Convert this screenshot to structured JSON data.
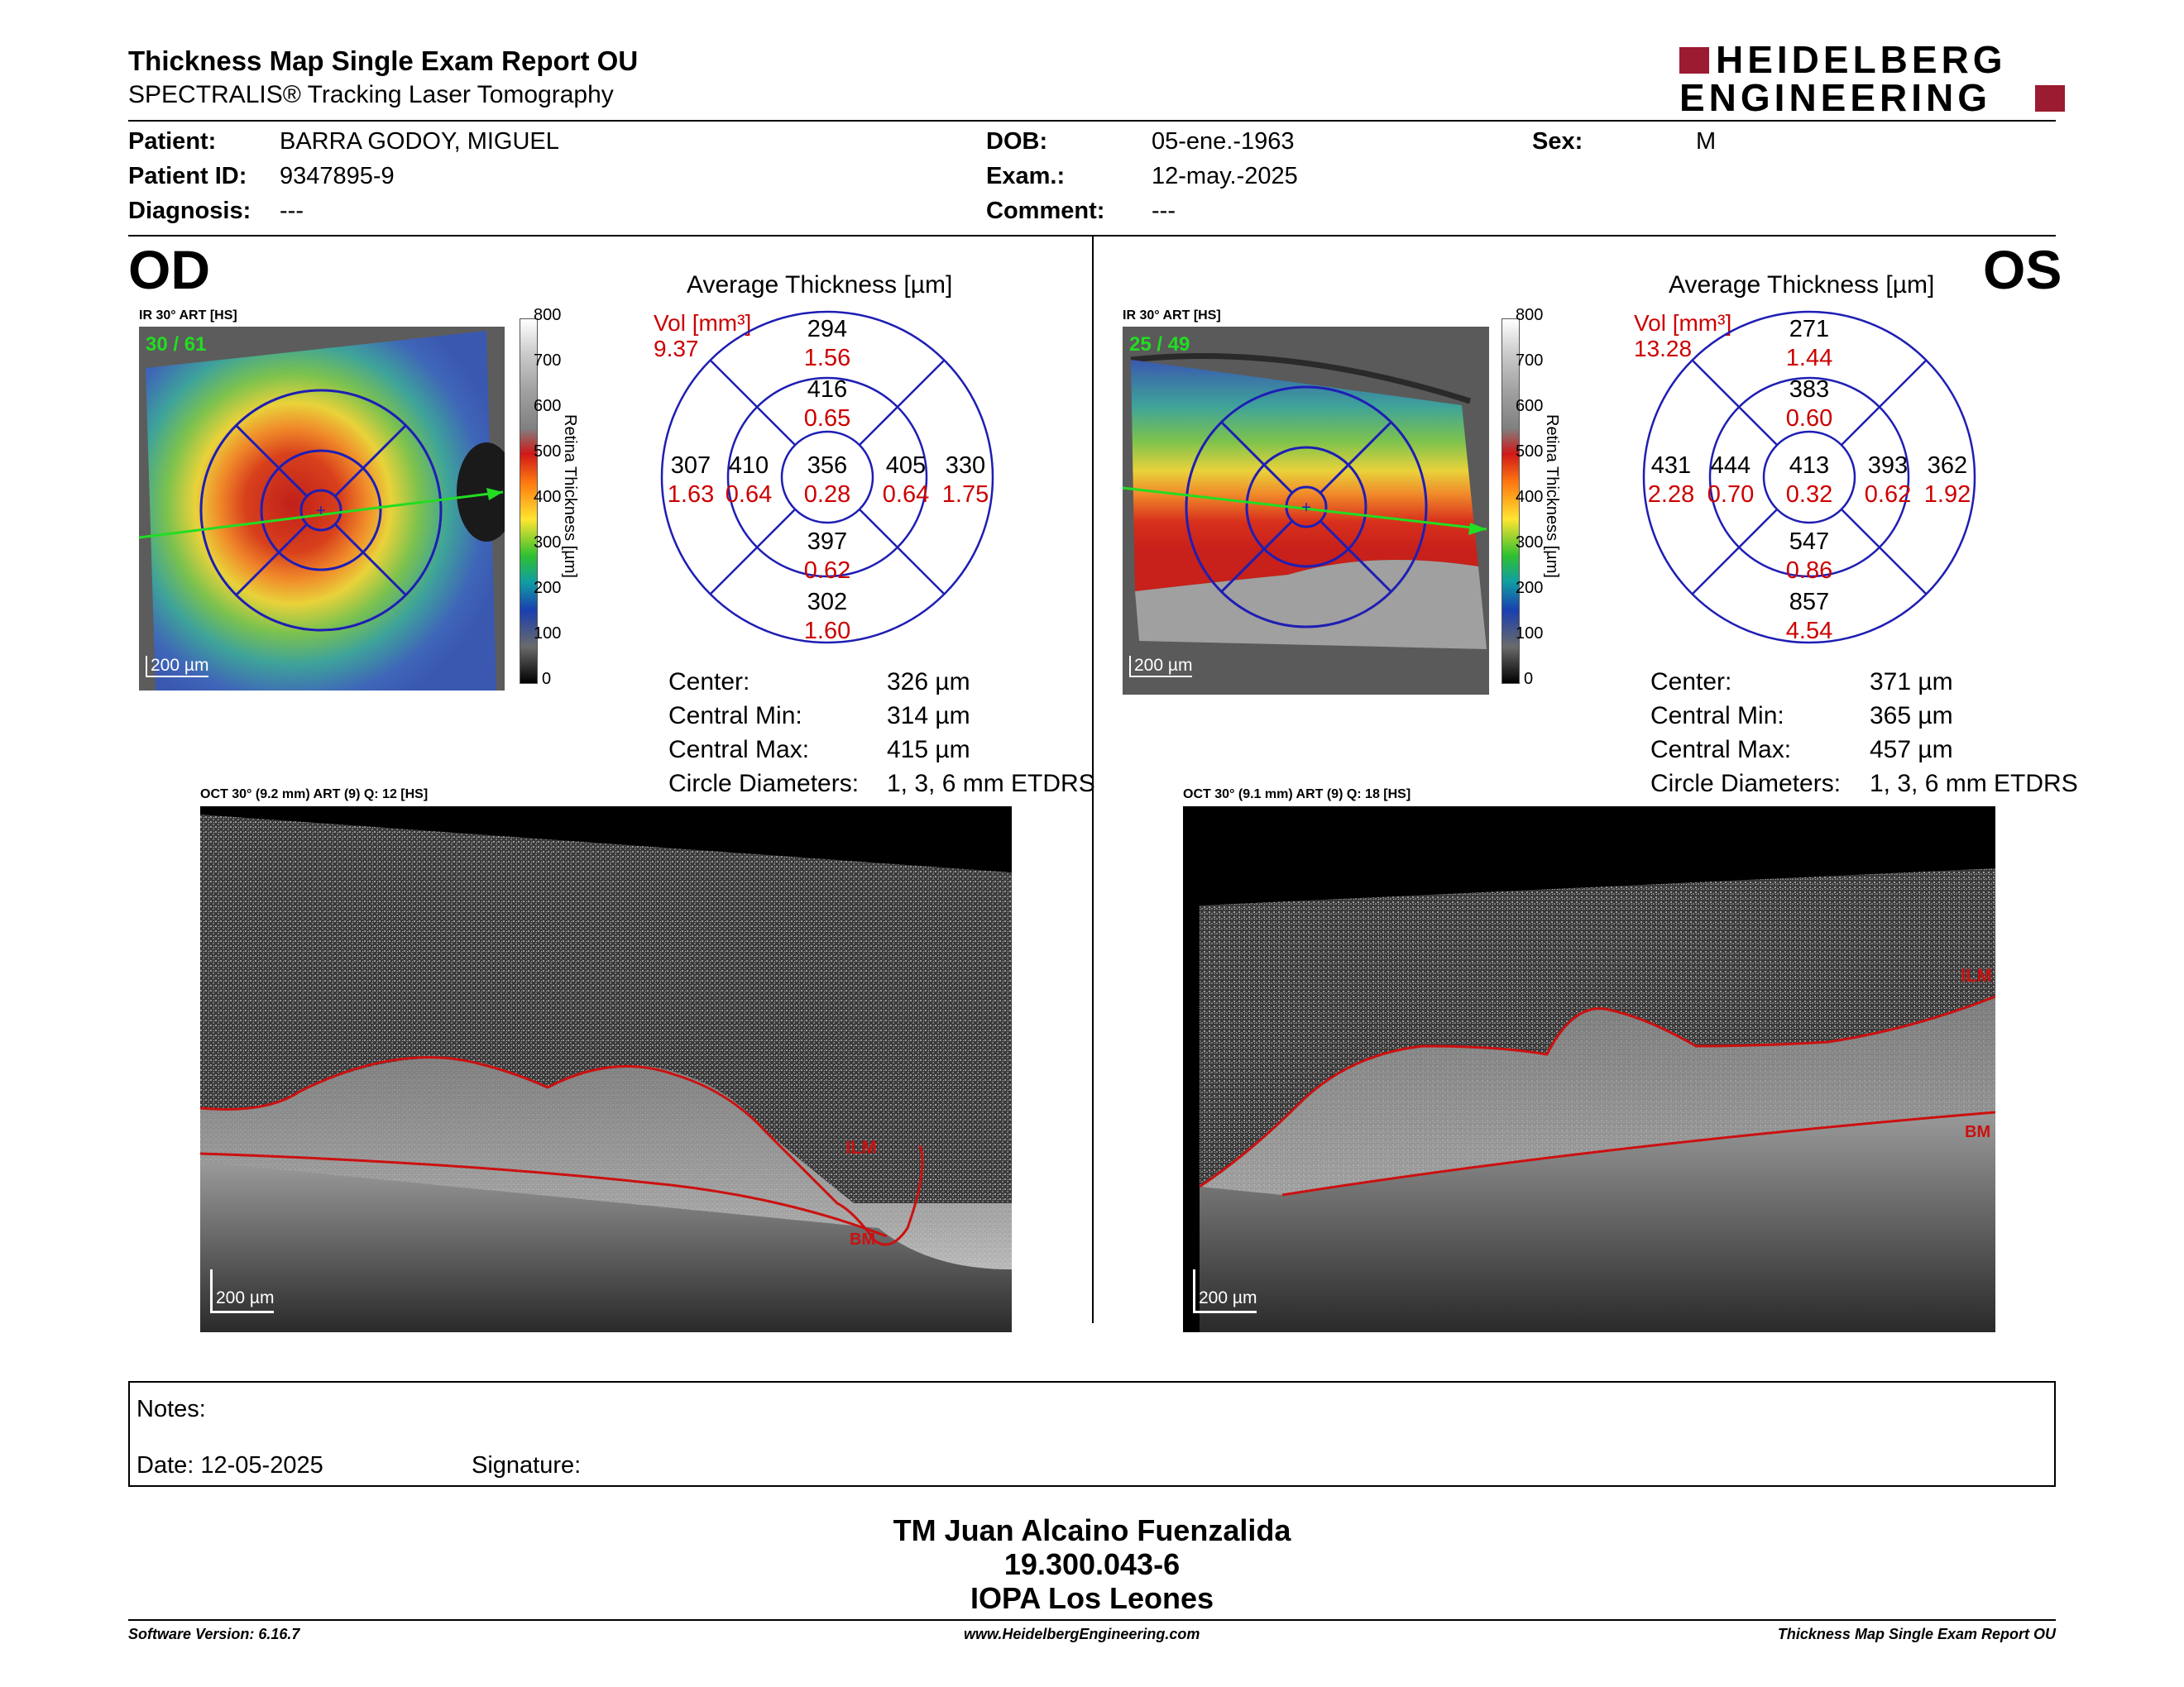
{
  "header": {
    "title": "Thickness Map Single Exam Report OU",
    "subtitle": "SPECTRALIS® Tracking Laser Tomography",
    "logo_line1": "HEIDELBERG",
    "logo_line2": "ENGINEERING",
    "logo_color": "#9b1b30"
  },
  "patient": {
    "patient_label": "Patient:",
    "patient_value": "BARRA GODOY, MIGUEL",
    "id_label": "Patient ID:",
    "id_value": "9347895-9",
    "diagnosis_label": "Diagnosis:",
    "diagnosis_value": "---",
    "dob_label": "DOB:",
    "dob_value": "05-ene.-1963",
    "exam_label": "Exam.:",
    "exam_value": "12-may.-2025",
    "comment_label": "Comment:",
    "comment_value": "---",
    "sex_label": "Sex:",
    "sex_value": "M"
  },
  "od": {
    "eye": "OD",
    "ir_caption": "IR 30° ART [HS]",
    "frames": "30 / 61",
    "scale": "200 µm",
    "etdrs_title": "Average Thickness [µm]",
    "vol_label": "Vol [mm³]",
    "vol_total": "9.37",
    "sectors": {
      "superior_outer": [
        "294",
        "1.56"
      ],
      "superior_inner": [
        "416",
        "0.65"
      ],
      "temporal_outer": [
        "307",
        "1.63"
      ],
      "temporal_inner": [
        "410",
        "0.64"
      ],
      "center": [
        "356",
        "0.28"
      ],
      "nasal_inner": [
        "405",
        "0.64"
      ],
      "nasal_outer": [
        "330",
        "1.75"
      ],
      "inferior_inner": [
        "397",
        "0.62"
      ],
      "inferior_outer": [
        "302",
        "1.60"
      ]
    },
    "stats": {
      "center_label": "Center:",
      "center_value": "326 µm",
      "min_label": "Central Min:",
      "min_value": "314 µm",
      "max_label": "Central Max:",
      "max_value": "415 µm",
      "circle_label": "Circle Diameters:",
      "circle_value": "1, 3, 6 mm ETDRS"
    },
    "oct_caption": "OCT 30° (9.2 mm) ART (9) Q: 12 [HS]",
    "oct_scale": "200 µm",
    "ilm": "ILM",
    "bm": "BM"
  },
  "os": {
    "eye": "OS",
    "ir_caption": "IR 30° ART [HS]",
    "frames": "25 / 49",
    "scale": "200 µm",
    "etdrs_title": "Average Thickness [µm]",
    "vol_label": "Vol [mm³]",
    "vol_total": "13.28",
    "sectors": {
      "superior_outer": [
        "271",
        "1.44"
      ],
      "superior_inner": [
        "383",
        "0.60"
      ],
      "temporal_outer": [
        "431",
        "2.28"
      ],
      "temporal_inner": [
        "444",
        "0.70"
      ],
      "center": [
        "413",
        "0.32"
      ],
      "nasal_inner": [
        "393",
        "0.62"
      ],
      "nasal_outer": [
        "362",
        "1.92"
      ],
      "inferior_inner": [
        "547",
        "0.86"
      ],
      "inferior_outer": [
        "857",
        "4.54"
      ]
    },
    "stats": {
      "center_label": "Center:",
      "center_value": "371 µm",
      "min_label": "Central Min:",
      "min_value": "365 µm",
      "max_label": "Central Max:",
      "max_value": "457 µm",
      "circle_label": "Circle Diameters:",
      "circle_value": "1, 3, 6 mm ETDRS"
    },
    "oct_caption": "OCT 30° (9.1 mm) ART (9) Q: 18 [HS]",
    "oct_scale": "200 µm",
    "ilm": "ILM",
    "bm": "BM"
  },
  "colorbar": {
    "ticks": [
      "800",
      "700",
      "600",
      "500",
      "400",
      "300",
      "200",
      "100",
      "0"
    ],
    "label": "Retina Thickness [µm]"
  },
  "notes": {
    "notes_label": "Notes:",
    "date_label": "Date: 12-05-2025",
    "signature_label": "Signature:"
  },
  "signature_block": {
    "name": "TM Juan Alcaino Fuenzalida",
    "rut": "19.300.043-6",
    "institution": "IOPA Los Leones"
  },
  "footer": {
    "software": "Software Version: 6.16.7",
    "website": "www.HeidelbergEngineering.com",
    "report": "Thickness Map Single Exam Report OU"
  }
}
